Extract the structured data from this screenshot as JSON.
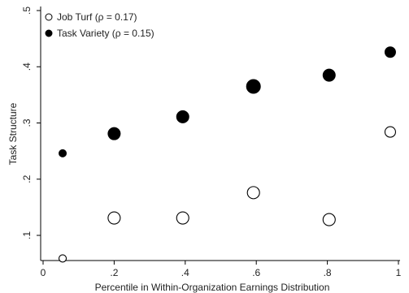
{
  "chart_data": {
    "type": "scatter",
    "xlabel": "Percentile in Within-Organization Earnings Distribution",
    "ylabel": "Task Structure",
    "xlim": [
      0,
      1
    ],
    "ylim": [
      0.05,
      0.5
    ],
    "x_ticks": [
      {
        "value": 0,
        "label": "0"
      },
      {
        "value": 0.2,
        "label": ".2"
      },
      {
        "value": 0.4,
        "label": ".4"
      },
      {
        "value": 0.6,
        "label": ".6"
      },
      {
        "value": 0.8,
        "label": ".8"
      },
      {
        "value": 1,
        "label": "1"
      }
    ],
    "y_ticks": [
      {
        "value": 0.1,
        "label": ".1"
      },
      {
        "value": 0.2,
        "label": ".2"
      },
      {
        "value": 0.3,
        "label": ".3"
      },
      {
        "value": 0.4,
        "label": ".4"
      },
      {
        "value": 0.5,
        "label": ".5"
      }
    ],
    "grid": false,
    "legend_position": "top-left",
    "series": [
      {
        "name": "Job Turf (ρ =  0.17)",
        "marker": "hollow-circle",
        "color": "#000000",
        "points": [
          {
            "x": 0.055,
            "y": 0.059,
            "size": "small"
          },
          {
            "x": 0.2,
            "y": 0.131,
            "size": "large"
          },
          {
            "x": 0.393,
            "y": 0.131,
            "size": "large"
          },
          {
            "x": 0.592,
            "y": 0.176,
            "size": "large"
          },
          {
            "x": 0.805,
            "y": 0.128,
            "size": "large"
          },
          {
            "x": 0.977,
            "y": 0.284,
            "size": "medium"
          }
        ]
      },
      {
        "name": "Task Variety (ρ =  0.15)",
        "marker": "filled-circle",
        "color": "#000000",
        "points": [
          {
            "x": 0.055,
            "y": 0.246,
            "size": "small"
          },
          {
            "x": 0.2,
            "y": 0.281,
            "size": "large"
          },
          {
            "x": 0.393,
            "y": 0.311,
            "size": "large"
          },
          {
            "x": 0.592,
            "y": 0.365,
            "size": "xlarge"
          },
          {
            "x": 0.805,
            "y": 0.385,
            "size": "large"
          },
          {
            "x": 0.977,
            "y": 0.426,
            "size": "medium"
          }
        ]
      }
    ]
  }
}
